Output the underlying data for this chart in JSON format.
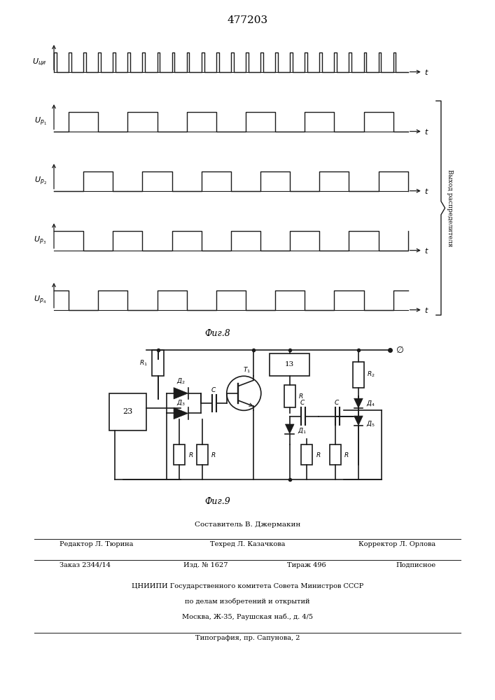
{
  "title": "477203",
  "fig8_caption": "Фиг.8",
  "fig9_caption": "Фиг.9",
  "line_color": "#1a1a1a",
  "rotated_label": "Выход распределителя",
  "footer_composer": "Составитель В. Джермакин",
  "footer_editor": "Редактор Л. Тюрина",
  "footer_techred": "Техред Л. Казачкова",
  "footer_corrector": "Корректор Л. Орлова",
  "footer_order": "Заказ 2344/14",
  "footer_izd": "Изд. № 1627",
  "footer_tirazh": "Тираж 496",
  "footer_podp": "Подписное",
  "footer_org": "ЦНИИПИ Государственного комитета Совета Министров СССР",
  "footer_dept": "по делам изобретений и открытий",
  "footer_addr": "Москва, Ж-35, Раушская наб., д. 4/5",
  "footer_print": "Типография, пр. Сапунова, 2"
}
